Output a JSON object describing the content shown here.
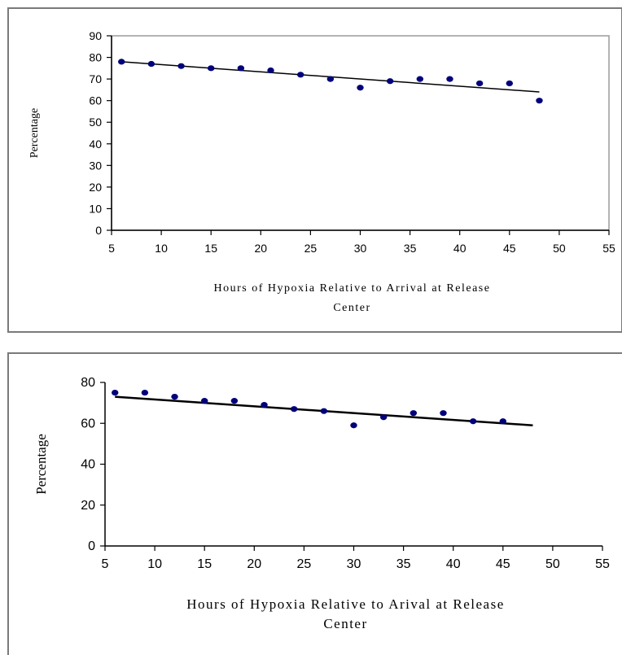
{
  "chart_data": [
    {
      "type": "scatter",
      "title": "",
      "xlabel_lines": [
        "Hours of Hypoxia Relative to Arrival at Release",
        "Center"
      ],
      "ylabel": "Percentage",
      "xlim": [
        5,
        55
      ],
      "ylim": [
        0,
        90
      ],
      "x_ticks": [
        5,
        10,
        15,
        20,
        25,
        30,
        35,
        40,
        45,
        50,
        55
      ],
      "y_ticks": [
        0,
        10,
        20,
        30,
        40,
        50,
        60,
        70,
        80,
        90
      ],
      "grid": false,
      "legend": "none",
      "marker_color": "#00007a",
      "trendline": {
        "type": "linear",
        "x": [
          6,
          48
        ],
        "y": [
          78,
          64
        ]
      },
      "points": [
        {
          "x": 6,
          "y": 78
        },
        {
          "x": 9,
          "y": 77
        },
        {
          "x": 12,
          "y": 76
        },
        {
          "x": 15,
          "y": 75
        },
        {
          "x": 18,
          "y": 75
        },
        {
          "x": 21,
          "y": 74
        },
        {
          "x": 24,
          "y": 72
        },
        {
          "x": 27,
          "y": 70
        },
        {
          "x": 30,
          "y": 66
        },
        {
          "x": 33,
          "y": 69
        },
        {
          "x": 36,
          "y": 70
        },
        {
          "x": 39,
          "y": 70
        },
        {
          "x": 42,
          "y": 68
        },
        {
          "x": 45,
          "y": 68
        },
        {
          "x": 48,
          "y": 60
        }
      ]
    },
    {
      "type": "scatter",
      "title": "",
      "xlabel_lines": [
        "Hours of Hypoxia Relative to Arival at Release",
        "Center"
      ],
      "ylabel": "Percentage",
      "xlim": [
        5,
        55
      ],
      "ylim": [
        0,
        80
      ],
      "x_ticks": [
        5,
        10,
        15,
        20,
        25,
        30,
        35,
        40,
        45,
        50,
        55
      ],
      "y_ticks": [
        0,
        20,
        40,
        60,
        80
      ],
      "grid": false,
      "legend": "none",
      "marker_color": "#00007a",
      "trendline": {
        "type": "linear",
        "x": [
          6,
          48
        ],
        "y": [
          73,
          59
        ]
      },
      "points": [
        {
          "x": 6,
          "y": 75
        },
        {
          "x": 9,
          "y": 75
        },
        {
          "x": 12,
          "y": 73
        },
        {
          "x": 15,
          "y": 71
        },
        {
          "x": 18,
          "y": 71
        },
        {
          "x": 21,
          "y": 69
        },
        {
          "x": 24,
          "y": 67
        },
        {
          "x": 27,
          "y": 66
        },
        {
          "x": 30,
          "y": 59
        },
        {
          "x": 33,
          "y": 63
        },
        {
          "x": 36,
          "y": 65
        },
        {
          "x": 39,
          "y": 65
        },
        {
          "x": 42,
          "y": 61
        },
        {
          "x": 45,
          "y": 61
        }
      ]
    }
  ]
}
